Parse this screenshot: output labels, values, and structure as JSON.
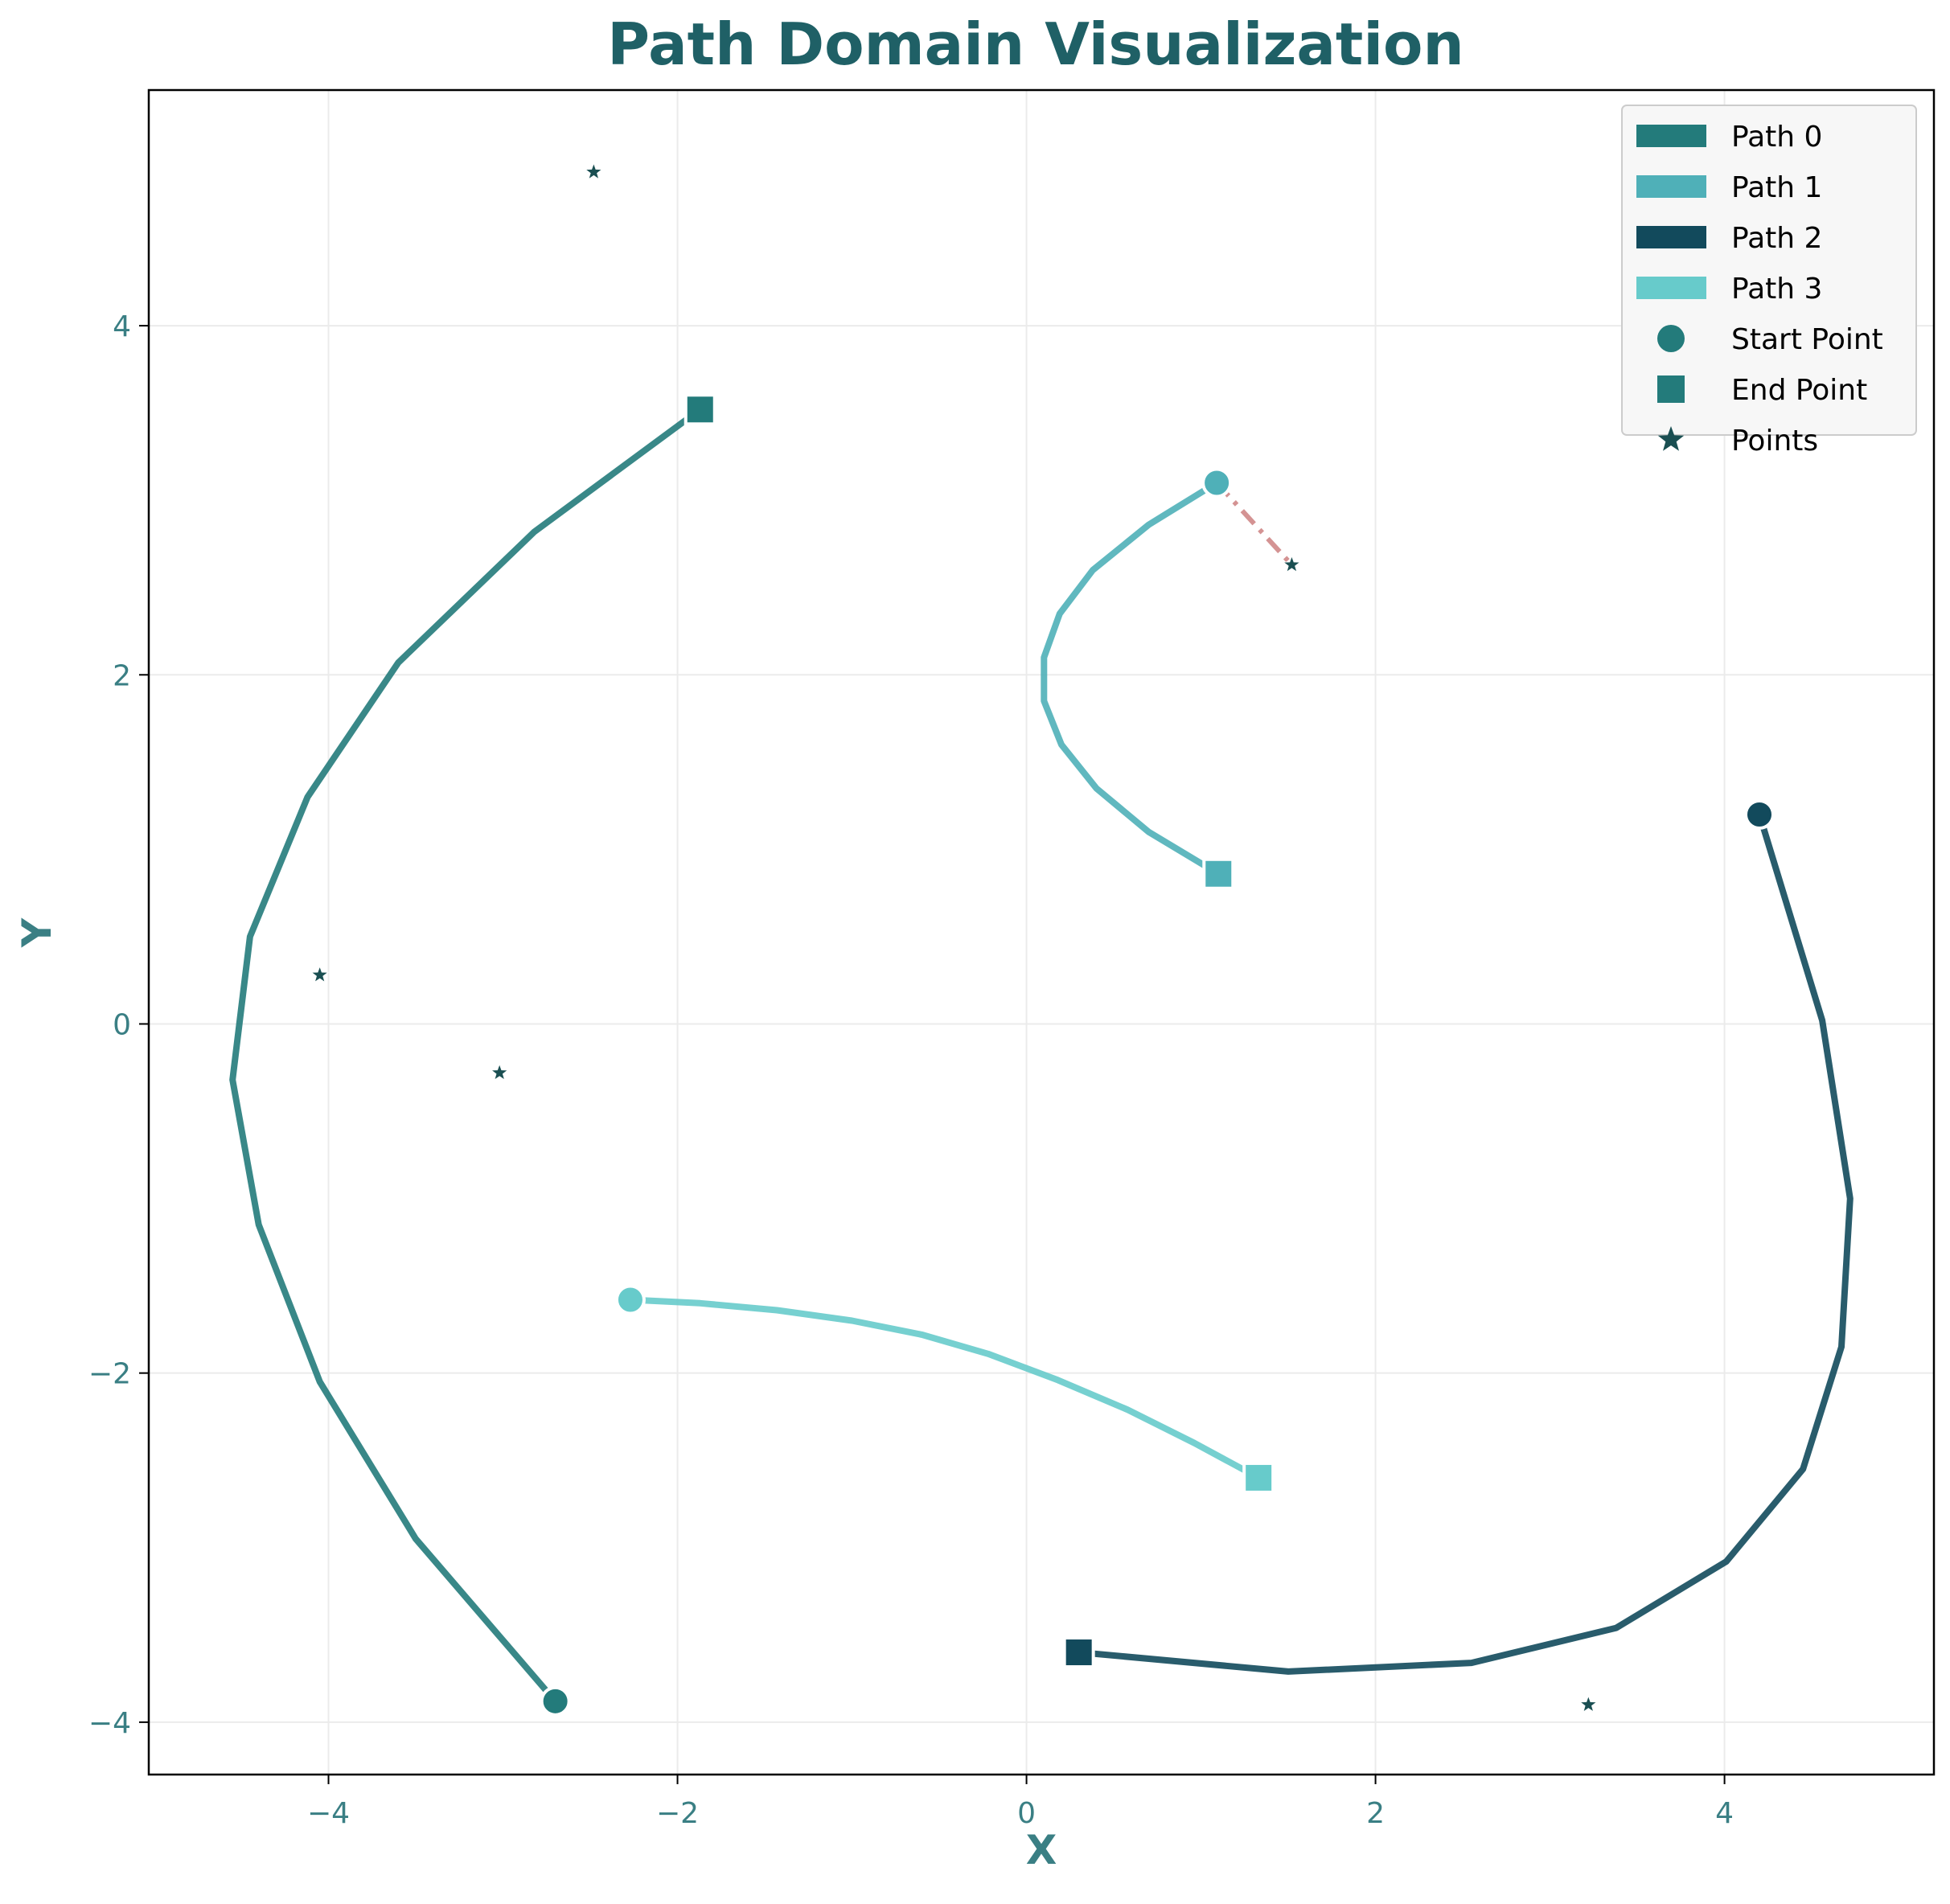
{
  "chart_data": {
    "type": "line",
    "title": "Path Domain Visualization",
    "xlabel": "X",
    "ylabel": "Y",
    "xlim": [
      -5.03,
      5.2
    ],
    "ylim": [
      -4.3,
      5.35
    ],
    "xticks": [
      -4,
      -2,
      0,
      2,
      4
    ],
    "yticks": [
      -4,
      -2,
      0,
      2,
      4
    ],
    "xtick_labels": [
      "−4",
      "−2",
      "0",
      "2",
      "4"
    ],
    "ytick_labels": [
      "−4",
      "−2",
      "0",
      "2",
      "4"
    ],
    "grid": true,
    "legend_position": "top-right",
    "series": [
      {
        "name": "Path 0",
        "color": "#237b7b",
        "x": [
          -2.7,
          -3.5,
          -4.05,
          -4.4,
          -4.55,
          -4.45,
          -4.12,
          -3.6,
          -2.82,
          -1.87
        ],
        "y": [
          -3.88,
          -2.95,
          -2.05,
          -1.15,
          -0.32,
          0.5,
          1.3,
          2.07,
          2.82,
          3.52
        ]
      },
      {
        "name": "Path 1",
        "color": "#4fb0b8",
        "x": [
          1.09,
          0.7,
          0.38,
          0.19,
          0.1,
          0.1,
          0.2,
          0.4,
          0.7,
          1.1
        ],
        "y": [
          3.1,
          2.86,
          2.6,
          2.35,
          2.1,
          1.85,
          1.6,
          1.35,
          1.1,
          0.86
        ]
      },
      {
        "name": "Path 2",
        "color": "#124a5c",
        "x": [
          4.2,
          4.56,
          4.72,
          4.67,
          4.45,
          4.01,
          3.38,
          2.55,
          1.5,
          0.3
        ],
        "y": [
          1.2,
          0.02,
          -1.0,
          -1.85,
          -2.55,
          -3.08,
          -3.46,
          -3.66,
          -3.71,
          -3.6
        ]
      },
      {
        "name": "Path 3",
        "color": "#67cbcb",
        "x": [
          -2.27,
          -1.87,
          -1.43,
          -1.0,
          -0.6,
          -0.22,
          0.18,
          0.58,
          0.96,
          1.33
        ],
        "y": [
          -1.58,
          -1.6,
          -1.64,
          -1.7,
          -1.78,
          -1.89,
          -2.04,
          -2.21,
          -2.4,
          -2.6
        ]
      }
    ],
    "start_points": [
      {
        "x": -2.7,
        "y": -3.88,
        "color": "#237b7b"
      },
      {
        "x": 1.09,
        "y": 3.1,
        "color": "#4fb0b8"
      },
      {
        "x": 4.2,
        "y": 1.2,
        "color": "#124a5c"
      },
      {
        "x": -2.27,
        "y": -1.58,
        "color": "#67cbcb"
      }
    ],
    "end_points": [
      {
        "x": -1.87,
        "y": 3.52,
        "color": "#237b7b"
      },
      {
        "x": 1.1,
        "y": 0.86,
        "color": "#4fb0b8"
      },
      {
        "x": 0.3,
        "y": -3.6,
        "color": "#124a5c"
      },
      {
        "x": 1.33,
        "y": -2.6,
        "color": "#67cbcb"
      }
    ],
    "points": [
      {
        "x": -2.48,
        "y": 4.88
      },
      {
        "x": -4.05,
        "y": 0.28
      },
      {
        "x": -3.02,
        "y": -0.28
      },
      {
        "x": 1.52,
        "y": 2.63
      },
      {
        "x": 3.22,
        "y": -3.9
      }
    ],
    "point_color": "#1a4f52",
    "connector": {
      "x": [
        1.09,
        1.52
      ],
      "y": [
        3.1,
        2.63
      ],
      "color": "#d49393",
      "style": "dash-dot"
    },
    "legend": [
      {
        "label": "Path 0",
        "kind": "patch",
        "color": "#237b7b"
      },
      {
        "label": "Path 1",
        "kind": "patch",
        "color": "#4fb0b8"
      },
      {
        "label": "Path 2",
        "kind": "patch",
        "color": "#124a5c"
      },
      {
        "label": "Path 3",
        "kind": "patch",
        "color": "#67cbcb"
      },
      {
        "label": "Start Point",
        "kind": "circle",
        "color": "#237b7b"
      },
      {
        "label": "End Point",
        "kind": "square",
        "color": "#237b7b"
      },
      {
        "label": "Points",
        "kind": "star",
        "color": "#1a4f52"
      }
    ],
    "colors": {
      "title": "#1f6066",
      "axis_text": "#3a7f84",
      "grid": "#ebebeb",
      "frame": "#000000"
    }
  }
}
